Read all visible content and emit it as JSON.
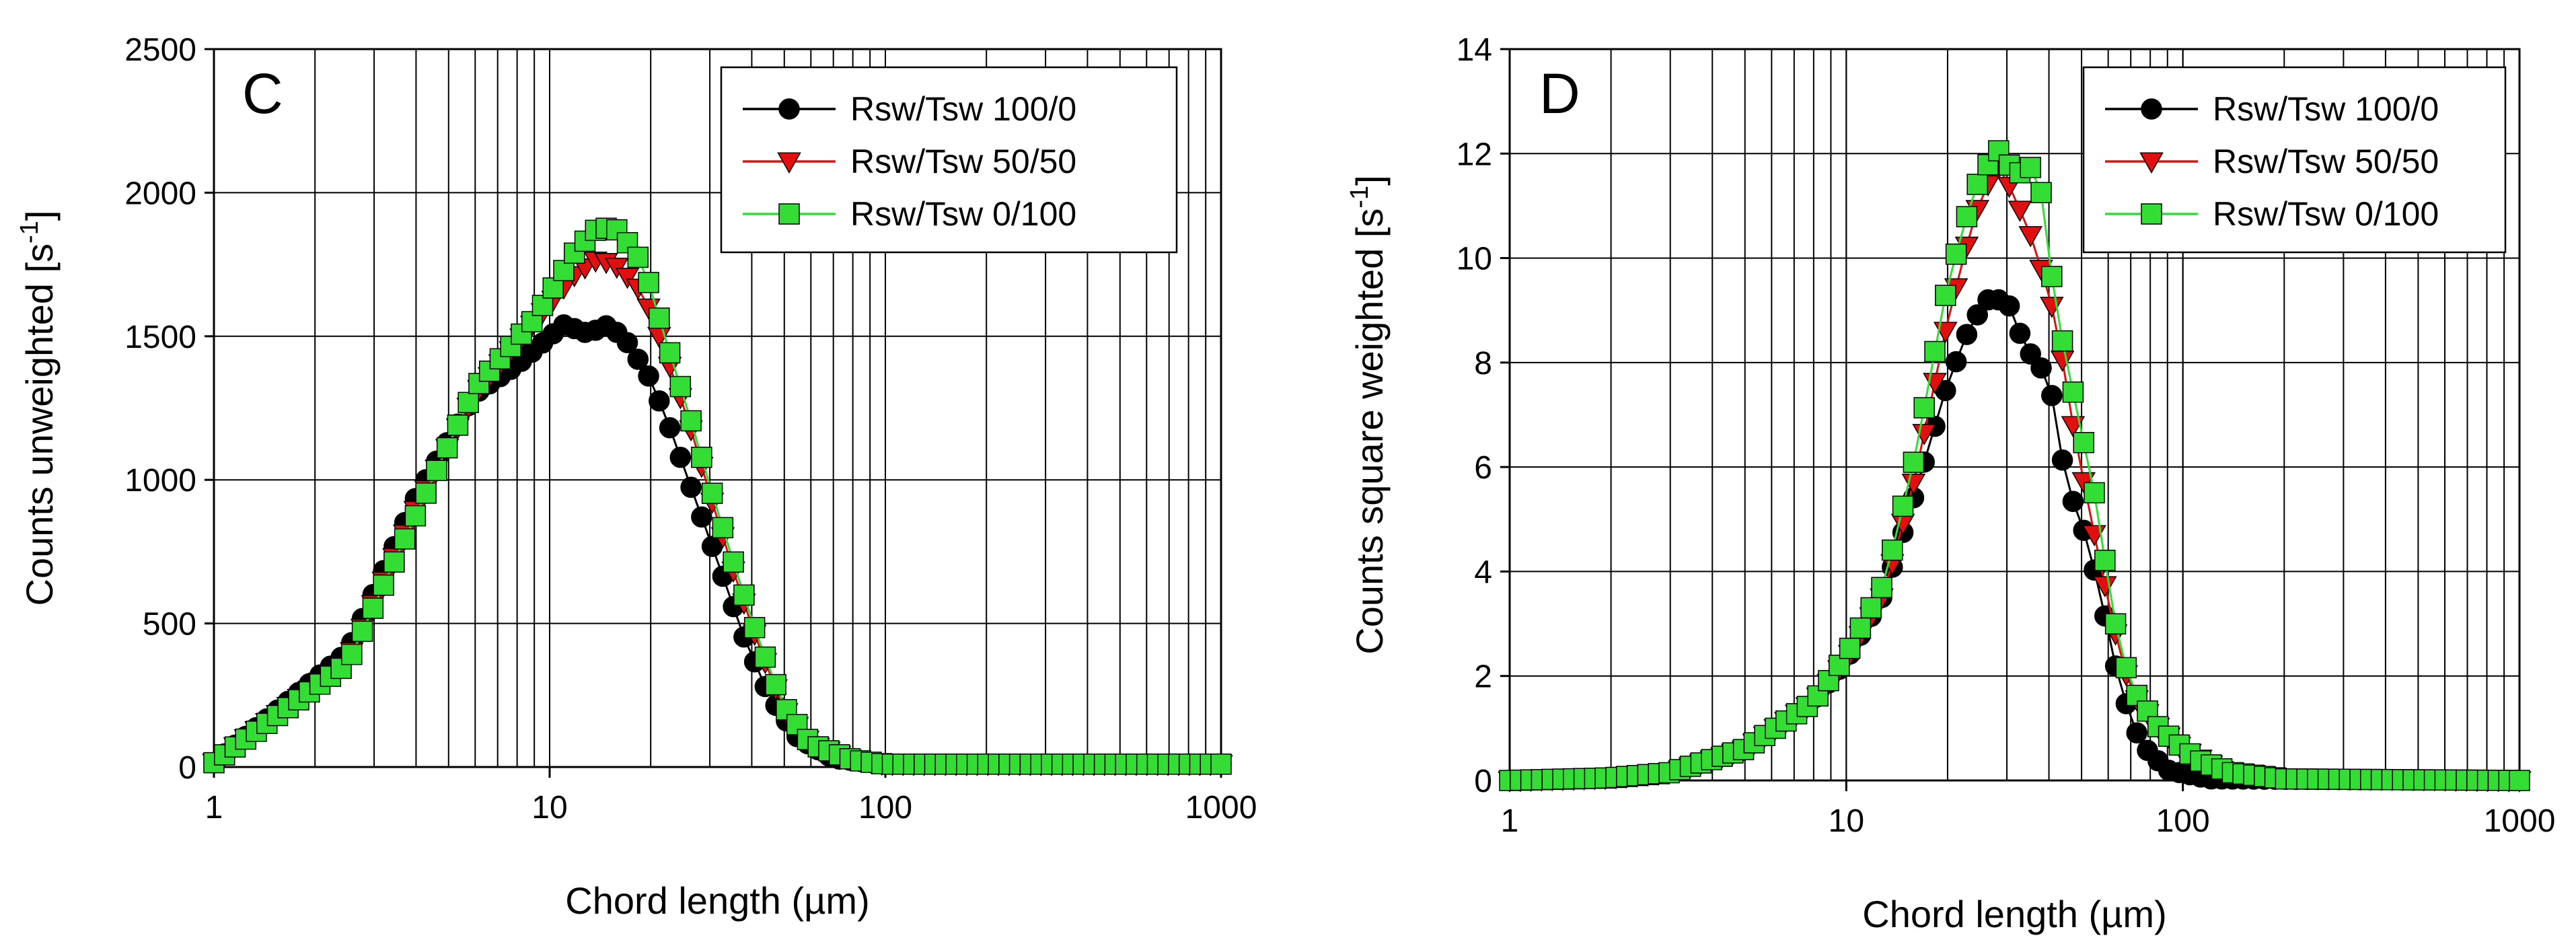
{
  "chart_data": [
    {
      "type": "scatter",
      "panel_label": "C",
      "xlabel": "Chord length (µm)",
      "ylabel_main": "Counts unweighted [s",
      "ylabel_sup": "-1",
      "ylabel_end": "]",
      "xscale": "log",
      "xlim": [
        1,
        1000
      ],
      "ylim": [
        0,
        2500
      ],
      "xticks": [
        1,
        10,
        100,
        1000
      ],
      "xtick_labels": [
        "1",
        "10",
        "100",
        "1000"
      ],
      "yticks": [
        0,
        500,
        1000,
        1500,
        2000,
        2500
      ],
      "ytick_labels": [
        "0",
        "500",
        "1000",
        "1500",
        "2000",
        "2500"
      ],
      "grid": true,
      "legend_position": "top-right",
      "series": [
        {
          "name": "Rsw/Tsw 100/0",
          "color": "#000000",
          "marker": "circle",
          "peaks": [
            [
              1,
              15
            ],
            [
              2.5,
              400
            ],
            [
              4,
              940
            ],
            [
              6,
              1300
            ],
            [
              8,
              1400
            ],
            [
              11,
              1540
            ],
            [
              13,
              1510
            ],
            [
              15,
              1540
            ],
            [
              17,
              1480
            ],
            [
              20,
              1350
            ],
            [
              23,
              1170
            ],
            [
              27,
              940
            ],
            [
              32,
              700
            ],
            [
              38,
              450
            ],
            [
              45,
              250
            ],
            [
              55,
              100
            ],
            [
              70,
              30
            ],
            [
              100,
              10
            ],
            [
              1000,
              10
            ]
          ]
        },
        {
          "name": "Rsw/Tsw 50/50",
          "color": "#e01010",
          "marker": "triangle-down",
          "peaks": [
            [
              1,
              15
            ],
            [
              2.5,
              370
            ],
            [
              4,
              900
            ],
            [
              6,
              1300
            ],
            [
              9,
              1550
            ],
            [
              12,
              1720
            ],
            [
              14,
              1770
            ],
            [
              16,
              1740
            ],
            [
              19,
              1650
            ],
            [
              22,
              1450
            ],
            [
              26,
              1200
            ],
            [
              30,
              950
            ],
            [
              36,
              650
            ],
            [
              42,
              420
            ],
            [
              50,
              200
            ],
            [
              60,
              80
            ],
            [
              80,
              25
            ],
            [
              100,
              10
            ],
            [
              1000,
              10
            ]
          ]
        },
        {
          "name": "Rsw/Tsw 0/100",
          "color": "#33dd33",
          "marker": "square",
          "peaks": [
            [
              1,
              15
            ],
            [
              2.5,
              360
            ],
            [
              4,
              880
            ],
            [
              6,
              1320
            ],
            [
              9,
              1560
            ],
            [
              12,
              1800
            ],
            [
              14,
              1880
            ],
            [
              16,
              1870
            ],
            [
              19,
              1750
            ],
            [
              22,
              1500
            ],
            [
              26,
              1230
            ],
            [
              30,
              980
            ],
            [
              36,
              680
            ],
            [
              42,
              440
            ],
            [
              50,
              210
            ],
            [
              60,
              80
            ],
            [
              80,
              25
            ],
            [
              100,
              10
            ],
            [
              1000,
              10
            ]
          ]
        }
      ]
    },
    {
      "type": "scatter",
      "panel_label": "D",
      "xlabel": "Chord length (µm)",
      "ylabel_main": "Counts square weighted [s",
      "ylabel_sup": "-1",
      "ylabel_end": "]",
      "xscale": "log",
      "xlim": [
        1,
        1000
      ],
      "ylim": [
        0,
        14
      ],
      "xticks": [
        1,
        10,
        100,
        1000
      ],
      "xtick_labels": [
        "1",
        "10",
        "100",
        "1000"
      ],
      "yticks": [
        0,
        2,
        4,
        6,
        8,
        10,
        12,
        14
      ],
      "ytick_labels": [
        "0",
        "2",
        "4",
        "6",
        "8",
        "10",
        "12",
        "14"
      ],
      "grid": true,
      "legend_position": "top-right",
      "series": [
        {
          "name": "Rsw/Tsw 100/0",
          "color": "#000000",
          "marker": "circle",
          "peaks": [
            [
              1,
              0
            ],
            [
              2,
              0.05
            ],
            [
              3,
              0.15
            ],
            [
              5,
              0.6
            ],
            [
              8,
              1.5
            ],
            [
              10,
              2.3
            ],
            [
              13,
              3.6
            ],
            [
              16,
              5.5
            ],
            [
              20,
              7.6
            ],
            [
              23,
              8.6
            ],
            [
              26,
              9.2
            ],
            [
              30,
              9.2
            ],
            [
              34,
              8.3
            ],
            [
              40,
              7.7
            ],
            [
              45,
              5.7
            ],
            [
              52,
              4.6
            ],
            [
              58,
              3.3
            ],
            [
              65,
              1.8
            ],
            [
              75,
              0.7
            ],
            [
              90,
              0.2
            ],
            [
              120,
              0.03
            ],
            [
              1000,
              0
            ]
          ]
        },
        {
          "name": "Rsw/Tsw 50/50",
          "color": "#e01010",
          "marker": "triangle-down",
          "peaks": [
            [
              1,
              0
            ],
            [
              2,
              0.05
            ],
            [
              3,
              0.15
            ],
            [
              5,
              0.6
            ],
            [
              8,
              1.5
            ],
            [
              10,
              2.3
            ],
            [
              13,
              3.6
            ],
            [
              16,
              5.8
            ],
            [
              20,
              8.8
            ],
            [
              24,
              10.8
            ],
            [
              28,
              11.8
            ],
            [
              31,
              11.3
            ],
            [
              36,
              10.3
            ],
            [
              42,
              8.8
            ],
            [
              48,
              6.5
            ],
            [
              55,
              4.6
            ],
            [
              62,
              3.0
            ],
            [
              70,
              1.7
            ],
            [
              85,
              1.0
            ],
            [
              100,
              0.6
            ],
            [
              130,
              0.2
            ],
            [
              200,
              0.05
            ],
            [
              1000,
              0
            ]
          ]
        },
        {
          "name": "Rsw/Tsw 0/100",
          "color": "#33dd33",
          "marker": "square",
          "peaks": [
            [
              1,
              0
            ],
            [
              2,
              0.05
            ],
            [
              3,
              0.15
            ],
            [
              5,
              0.6
            ],
            [
              8,
              1.5
            ],
            [
              10,
              2.4
            ],
            [
              13,
              3.8
            ],
            [
              16,
              6.2
            ],
            [
              20,
              9.5
            ],
            [
              24,
              11.3
            ],
            [
              28,
              12.1
            ],
            [
              32,
              11.6
            ],
            [
              37,
              11.8
            ],
            [
              42,
              9.0
            ],
            [
              48,
              7.2
            ],
            [
              55,
              5.4
            ],
            [
              62,
              3.2
            ],
            [
              70,
              1.8
            ],
            [
              85,
              1.0
            ],
            [
              110,
              0.4
            ],
            [
              140,
              0.15
            ],
            [
              200,
              0.03
            ],
            [
              1000,
              0
            ]
          ]
        }
      ]
    }
  ]
}
